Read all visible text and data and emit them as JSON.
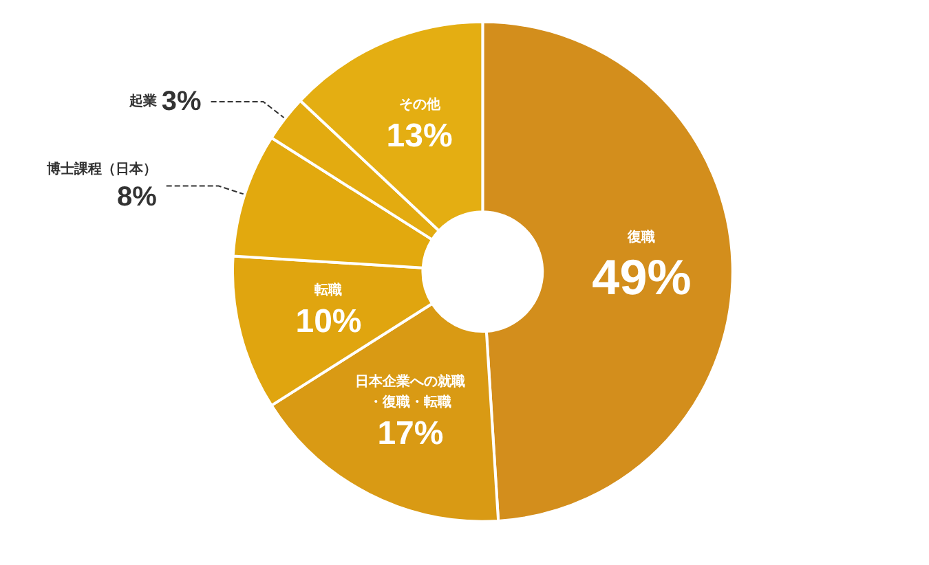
{
  "chart_data": {
    "type": "donut",
    "categories": [
      "復職",
      "日本企業への就職・復職・転職",
      "転職",
      "博士課程（日本）",
      "起業",
      "その他"
    ],
    "values": [
      49,
      17,
      10,
      8,
      3,
      13
    ],
    "value_labels": [
      "49%",
      "17%",
      "10%",
      "8%",
      "3%",
      "13%"
    ],
    "colors": [
      "#d38e1c",
      "#d99a14",
      "#e0a50f",
      "#e2a90e",
      "#e3ab10",
      "#e4ae12"
    ],
    "legend": false
  }
}
